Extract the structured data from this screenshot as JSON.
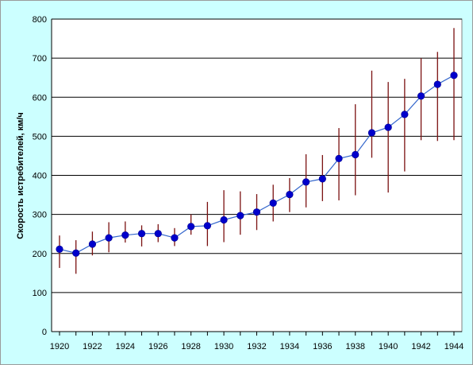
{
  "chart_data": {
    "type": "line",
    "title": "",
    "xlabel": "",
    "ylabel": "Скорость истребителей, км/ч",
    "xlim": [
      1920,
      1944
    ],
    "ylim": [
      0,
      800
    ],
    "y_ticks": [
      0,
      100,
      200,
      300,
      400,
      500,
      600,
      700,
      800
    ],
    "x_tick_labels": [
      1920,
      1922,
      1924,
      1926,
      1928,
      1930,
      1932,
      1934,
      1936,
      1938,
      1940,
      1942,
      1944
    ],
    "grid": "horizontal",
    "legend": "none",
    "series": [
      {
        "x": [
          1920,
          1921,
          1922,
          1923,
          1924,
          1925,
          1926,
          1927,
          1928,
          1929,
          1930,
          1931,
          1932,
          1933,
          1934,
          1935,
          1936,
          1937,
          1938,
          1939,
          1940,
          1941,
          1942,
          1943,
          1944
        ],
        "y": [
          211,
          201,
          224,
          240,
          247,
          251,
          251,
          240,
          269,
          271,
          286,
          297,
          306,
          329,
          351,
          383,
          391,
          443,
          453,
          509,
          523,
          556,
          603,
          633,
          656
        ],
        "y_low": [
          163,
          148,
          195,
          203,
          228,
          218,
          229,
          219,
          248,
          219,
          229,
          248,
          260,
          282,
          306,
          318,
          334,
          336,
          349,
          445,
          356,
          410,
          490,
          488,
          490
        ],
        "y_high": [
          246,
          234,
          256,
          280,
          282,
          272,
          275,
          265,
          300,
          332,
          362,
          359,
          352,
          376,
          393,
          454,
          452,
          521,
          582,
          668,
          639,
          647,
          700,
          716,
          777
        ],
        "marker_color": "#0000cc",
        "line_color": "#3366cc",
        "errorbar_color": "#7a1010"
      }
    ]
  },
  "colors": {
    "background": "#ccffff",
    "plot_area": "#ffffff",
    "gridline": "#000000"
  }
}
